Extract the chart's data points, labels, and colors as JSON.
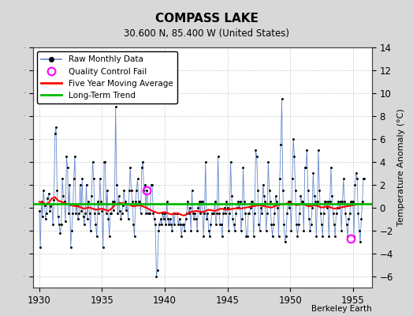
{
  "title": "COMPASS LAKE",
  "subtitle": "30.600 N, 85.400 W (United States)",
  "ylabel_right": "Temperature Anomaly (°C)",
  "credit": "Berkeley Earth",
  "ylim": [
    -7,
    14
  ],
  "xlim": [
    1929.5,
    1956.5
  ],
  "yticks": [
    -6,
    -4,
    -2,
    0,
    2,
    4,
    6,
    8,
    10,
    12,
    14
  ],
  "xticks": [
    1930,
    1935,
    1940,
    1945,
    1950,
    1955
  ],
  "bg_color": "#d8d8d8",
  "plot_bg_color": "#ffffff",
  "line_color": "#6688cc",
  "ma_color": "#ff0000",
  "trend_color": "#00bb00",
  "qc_color": "#ff00ff",
  "raw_data": [
    [
      1930.0,
      -0.3
    ],
    [
      1930.083,
      -3.5
    ],
    [
      1930.167,
      0.5
    ],
    [
      1930.25,
      -0.8
    ],
    [
      1930.333,
      1.5
    ],
    [
      1930.417,
      0.2
    ],
    [
      1930.5,
      -1.0
    ],
    [
      1930.583,
      -0.5
    ],
    [
      1930.667,
      0.8
    ],
    [
      1930.75,
      1.2
    ],
    [
      1930.833,
      -0.3
    ],
    [
      1930.917,
      0.1
    ],
    [
      1931.0,
      0.3
    ],
    [
      1931.083,
      -1.5
    ],
    [
      1931.167,
      0.7
    ],
    [
      1931.25,
      6.5
    ],
    [
      1931.333,
      7.0
    ],
    [
      1931.417,
      1.5
    ],
    [
      1931.5,
      -0.8
    ],
    [
      1931.583,
      -1.5
    ],
    [
      1931.667,
      -2.2
    ],
    [
      1931.75,
      -1.5
    ],
    [
      1931.833,
      2.5
    ],
    [
      1931.917,
      1.0
    ],
    [
      1932.0,
      0.5
    ],
    [
      1932.083,
      -1.2
    ],
    [
      1932.167,
      4.5
    ],
    [
      1932.25,
      3.5
    ],
    [
      1932.333,
      -0.5
    ],
    [
      1932.417,
      2.0
    ],
    [
      1932.5,
      -3.5
    ],
    [
      1932.583,
      -2.0
    ],
    [
      1932.667,
      -0.5
    ],
    [
      1932.75,
      2.5
    ],
    [
      1932.833,
      4.5
    ],
    [
      1932.917,
      -0.5
    ],
    [
      1933.0,
      0.2
    ],
    [
      1933.083,
      -1.0
    ],
    [
      1933.167,
      -0.5
    ],
    [
      1933.25,
      2.0
    ],
    [
      1933.333,
      -0.3
    ],
    [
      1933.417,
      2.5
    ],
    [
      1933.5,
      -0.8
    ],
    [
      1933.583,
      -1.5
    ],
    [
      1933.667,
      -0.5
    ],
    [
      1933.75,
      2.0
    ],
    [
      1933.833,
      -1.0
    ],
    [
      1933.917,
      0.5
    ],
    [
      1934.0,
      -0.5
    ],
    [
      1934.083,
      -2.0
    ],
    [
      1934.167,
      1.0
    ],
    [
      1934.25,
      4.0
    ],
    [
      1934.333,
      2.5
    ],
    [
      1934.417,
      -0.5
    ],
    [
      1934.5,
      -1.5
    ],
    [
      1934.583,
      -2.5
    ],
    [
      1934.667,
      0.5
    ],
    [
      1934.75,
      -0.5
    ],
    [
      1934.833,
      2.5
    ],
    [
      1934.917,
      0.5
    ],
    [
      1935.0,
      -0.3
    ],
    [
      1935.083,
      -3.5
    ],
    [
      1935.167,
      4.0
    ],
    [
      1935.25,
      4.0
    ],
    [
      1935.333,
      -0.5
    ],
    [
      1935.417,
      1.5
    ],
    [
      1935.5,
      -1.0
    ],
    [
      1935.583,
      -2.5
    ],
    [
      1935.667,
      -0.5
    ],
    [
      1935.75,
      -0.5
    ],
    [
      1935.833,
      0.5
    ],
    [
      1935.917,
      -0.2
    ],
    [
      1936.0,
      0.5
    ],
    [
      1936.083,
      8.8
    ],
    [
      1936.167,
      2.0
    ],
    [
      1936.25,
      -0.5
    ],
    [
      1936.333,
      1.0
    ],
    [
      1936.417,
      -0.3
    ],
    [
      1936.5,
      -1.0
    ],
    [
      1936.583,
      -0.5
    ],
    [
      1936.667,
      0.2
    ],
    [
      1936.75,
      1.5
    ],
    [
      1936.833,
      0.5
    ],
    [
      1936.917,
      -0.2
    ],
    [
      1937.0,
      0.3
    ],
    [
      1937.083,
      -1.0
    ],
    [
      1937.167,
      1.5
    ],
    [
      1937.25,
      3.5
    ],
    [
      1937.333,
      1.5
    ],
    [
      1937.417,
      0.5
    ],
    [
      1937.5,
      -1.5
    ],
    [
      1937.583,
      -2.5
    ],
    [
      1937.667,
      0.5
    ],
    [
      1937.75,
      1.5
    ],
    [
      1937.833,
      2.5
    ],
    [
      1937.917,
      0.5
    ],
    [
      1938.0,
      0.5
    ],
    [
      1938.083,
      -0.5
    ],
    [
      1938.167,
      3.5
    ],
    [
      1938.25,
      4.0
    ],
    [
      1938.333,
      1.5
    ],
    [
      1938.417,
      2.0
    ],
    [
      1938.5,
      -0.5
    ],
    [
      1938.583,
      1.5
    ],
    [
      1938.667,
      -0.5
    ],
    [
      1938.75,
      -0.5
    ],
    [
      1938.833,
      -0.5
    ],
    [
      1938.917,
      2.0
    ],
    [
      1939.0,
      2.0
    ],
    [
      1939.083,
      -0.5
    ],
    [
      1939.167,
      -1.0
    ],
    [
      1939.25,
      -1.5
    ],
    [
      1939.333,
      -6.0
    ],
    [
      1939.417,
      -5.5
    ],
    [
      1939.5,
      -2.0
    ],
    [
      1939.583,
      -1.5
    ],
    [
      1939.667,
      -1.0
    ],
    [
      1939.75,
      -1.5
    ],
    [
      1939.833,
      -0.5
    ],
    [
      1939.917,
      -1.0
    ],
    [
      1940.0,
      -0.5
    ],
    [
      1940.083,
      -1.5
    ],
    [
      1940.167,
      0.5
    ],
    [
      1940.25,
      -1.0
    ],
    [
      1940.333,
      -1.5
    ],
    [
      1940.417,
      -1.0
    ],
    [
      1940.5,
      -1.5
    ],
    [
      1940.583,
      -2.0
    ],
    [
      1940.667,
      -0.5
    ],
    [
      1940.75,
      -1.5
    ],
    [
      1940.833,
      -0.5
    ],
    [
      1940.917,
      -0.5
    ],
    [
      1941.0,
      -0.5
    ],
    [
      1941.083,
      -1.5
    ],
    [
      1941.167,
      -1.0
    ],
    [
      1941.25,
      -1.5
    ],
    [
      1941.333,
      -2.5
    ],
    [
      1941.417,
      -1.5
    ],
    [
      1941.5,
      -1.5
    ],
    [
      1941.583,
      -2.0
    ],
    [
      1941.667,
      -1.0
    ],
    [
      1941.75,
      -0.5
    ],
    [
      1941.833,
      0.5
    ],
    [
      1941.917,
      -0.5
    ],
    [
      1942.0,
      0.0
    ],
    [
      1942.083,
      -2.0
    ],
    [
      1942.167,
      1.5
    ],
    [
      1942.25,
      -0.5
    ],
    [
      1942.333,
      -1.0
    ],
    [
      1942.417,
      -0.5
    ],
    [
      1942.5,
      -1.0
    ],
    [
      1942.583,
      -2.0
    ],
    [
      1942.667,
      0.0
    ],
    [
      1942.75,
      0.5
    ],
    [
      1942.833,
      -0.5
    ],
    [
      1942.917,
      0.5
    ],
    [
      1943.0,
      0.5
    ],
    [
      1943.083,
      -2.5
    ],
    [
      1943.167,
      -0.5
    ],
    [
      1943.25,
      4.0
    ],
    [
      1943.333,
      -1.0
    ],
    [
      1943.417,
      -0.5
    ],
    [
      1943.5,
      -2.0
    ],
    [
      1943.583,
      -2.5
    ],
    [
      1943.667,
      -1.5
    ],
    [
      1943.75,
      -0.5
    ],
    [
      1943.833,
      -0.5
    ],
    [
      1943.917,
      -0.5
    ],
    [
      1944.0,
      0.5
    ],
    [
      1944.083,
      -1.5
    ],
    [
      1944.167,
      -0.5
    ],
    [
      1944.25,
      4.5
    ],
    [
      1944.333,
      -0.5
    ],
    [
      1944.417,
      -1.5
    ],
    [
      1944.5,
      -1.5
    ],
    [
      1944.583,
      -2.5
    ],
    [
      1944.667,
      -0.5
    ],
    [
      1944.75,
      0.0
    ],
    [
      1944.833,
      -0.5
    ],
    [
      1944.917,
      0.5
    ],
    [
      1945.0,
      0.0
    ],
    [
      1945.083,
      -2.0
    ],
    [
      1945.167,
      -0.5
    ],
    [
      1945.25,
      4.0
    ],
    [
      1945.333,
      1.0
    ],
    [
      1945.417,
      -1.0
    ],
    [
      1945.5,
      -1.5
    ],
    [
      1945.583,
      -2.0
    ],
    [
      1945.667,
      -0.5
    ],
    [
      1945.75,
      0.0
    ],
    [
      1945.833,
      0.5
    ],
    [
      1945.917,
      0.0
    ],
    [
      1946.0,
      0.5
    ],
    [
      1946.083,
      -2.0
    ],
    [
      1946.167,
      -1.0
    ],
    [
      1946.25,
      3.5
    ],
    [
      1946.333,
      0.5
    ],
    [
      1946.417,
      -0.5
    ],
    [
      1946.5,
      -2.5
    ],
    [
      1946.583,
      -2.5
    ],
    [
      1946.667,
      -0.5
    ],
    [
      1946.75,
      -0.5
    ],
    [
      1946.833,
      0.0
    ],
    [
      1946.917,
      0.5
    ],
    [
      1947.0,
      0.5
    ],
    [
      1947.083,
      -2.5
    ],
    [
      1947.167,
      -0.5
    ],
    [
      1947.25,
      5.0
    ],
    [
      1947.333,
      4.5
    ],
    [
      1947.417,
      1.5
    ],
    [
      1947.5,
      -1.5
    ],
    [
      1947.583,
      -2.0
    ],
    [
      1947.667,
      0.0
    ],
    [
      1947.75,
      -0.5
    ],
    [
      1947.833,
      2.0
    ],
    [
      1947.917,
      1.0
    ],
    [
      1948.0,
      0.5
    ],
    [
      1948.083,
      -2.0
    ],
    [
      1948.167,
      -0.5
    ],
    [
      1948.25,
      4.0
    ],
    [
      1948.333,
      1.5
    ],
    [
      1948.417,
      0.5
    ],
    [
      1948.5,
      -1.5
    ],
    [
      1948.583,
      -2.5
    ],
    [
      1948.667,
      -1.5
    ],
    [
      1948.75,
      -0.5
    ],
    [
      1948.833,
      1.0
    ],
    [
      1948.917,
      0.5
    ],
    [
      1949.0,
      0.0
    ],
    [
      1949.083,
      -2.5
    ],
    [
      1949.167,
      2.5
    ],
    [
      1949.25,
      5.5
    ],
    [
      1949.333,
      9.5
    ],
    [
      1949.417,
      1.5
    ],
    [
      1949.5,
      -1.5
    ],
    [
      1949.583,
      -3.0
    ],
    [
      1949.667,
      -2.5
    ],
    [
      1949.75,
      -0.5
    ],
    [
      1949.833,
      0.5
    ],
    [
      1949.917,
      0.0
    ],
    [
      1950.0,
      0.5
    ],
    [
      1950.083,
      -2.0
    ],
    [
      1950.167,
      2.5
    ],
    [
      1950.25,
      6.0
    ],
    [
      1950.333,
      4.5
    ],
    [
      1950.417,
      1.5
    ],
    [
      1950.5,
      -1.5
    ],
    [
      1950.583,
      -2.5
    ],
    [
      1950.667,
      -1.5
    ],
    [
      1950.75,
      -0.5
    ],
    [
      1950.833,
      1.0
    ],
    [
      1950.917,
      0.5
    ],
    [
      1951.0,
      0.5
    ],
    [
      1951.083,
      -2.0
    ],
    [
      1951.167,
      3.5
    ],
    [
      1951.25,
      3.5
    ],
    [
      1951.333,
      5.0
    ],
    [
      1951.417,
      1.5
    ],
    [
      1951.5,
      -1.0
    ],
    [
      1951.583,
      -2.0
    ],
    [
      1951.667,
      -1.5
    ],
    [
      1951.75,
      0.0
    ],
    [
      1951.833,
      3.0
    ],
    [
      1951.917,
      1.0
    ],
    [
      1952.0,
      0.5
    ],
    [
      1952.083,
      -2.5
    ],
    [
      1952.167,
      0.5
    ],
    [
      1952.25,
      5.0
    ],
    [
      1952.333,
      1.5
    ],
    [
      1952.417,
      -0.5
    ],
    [
      1952.5,
      -1.5
    ],
    [
      1952.583,
      -2.5
    ],
    [
      1952.667,
      -0.5
    ],
    [
      1952.75,
      0.5
    ],
    [
      1952.833,
      0.5
    ],
    [
      1952.917,
      0.0
    ],
    [
      1953.0,
      0.5
    ],
    [
      1953.083,
      -2.5
    ],
    [
      1953.167,
      0.5
    ],
    [
      1953.25,
      3.5
    ],
    [
      1953.333,
      1.0
    ],
    [
      1953.417,
      -0.5
    ],
    [
      1953.5,
      -1.5
    ],
    [
      1953.583,
      -2.5
    ],
    [
      1953.667,
      -0.5
    ],
    [
      1953.75,
      0.0
    ],
    [
      1953.833,
      0.5
    ],
    [
      1953.917,
      0.0
    ],
    [
      1954.0,
      0.5
    ],
    [
      1954.083,
      -2.0
    ],
    [
      1954.167,
      0.5
    ],
    [
      1954.25,
      2.5
    ],
    [
      1954.333,
      0.5
    ],
    [
      1954.417,
      -0.5
    ],
    [
      1954.5,
      -1.5
    ],
    [
      1954.583,
      -2.5
    ],
    [
      1954.667,
      -1.0
    ],
    [
      1954.75,
      -0.5
    ],
    [
      1954.833,
      0.5
    ],
    [
      1954.917,
      0.5
    ],
    [
      1955.0,
      0.5
    ],
    [
      1955.083,
      -2.5
    ],
    [
      1955.167,
      2.0
    ],
    [
      1955.25,
      3.0
    ],
    [
      1955.333,
      2.5
    ],
    [
      1955.417,
      -0.5
    ],
    [
      1955.5,
      -2.0
    ],
    [
      1955.583,
      -3.0
    ],
    [
      1955.667,
      -1.0
    ],
    [
      1955.75,
      0.5
    ],
    [
      1955.833,
      2.5
    ],
    [
      1955.917,
      2.5
    ]
  ],
  "qc_fail_points": [
    [
      1938.583,
      1.5
    ],
    [
      1954.833,
      -2.7
    ]
  ],
  "moving_avg_data": [
    [
      1930.0,
      0.5
    ],
    [
      1930.25,
      0.45
    ],
    [
      1930.5,
      0.3
    ],
    [
      1930.75,
      0.4
    ],
    [
      1931.0,
      0.8
    ],
    [
      1931.25,
      0.9
    ],
    [
      1931.5,
      0.6
    ],
    [
      1931.75,
      0.5
    ],
    [
      1932.0,
      0.4
    ],
    [
      1932.25,
      0.3
    ],
    [
      1932.5,
      0.2
    ],
    [
      1932.75,
      0.15
    ],
    [
      1933.0,
      0.1
    ],
    [
      1933.25,
      0.05
    ],
    [
      1933.5,
      -0.1
    ],
    [
      1933.75,
      -0.05
    ],
    [
      1934.0,
      0.0
    ],
    [
      1934.25,
      -0.1
    ],
    [
      1934.5,
      -0.2
    ],
    [
      1934.75,
      -0.15
    ],
    [
      1935.0,
      -0.1
    ],
    [
      1935.25,
      -0.2
    ],
    [
      1935.5,
      -0.3
    ],
    [
      1935.75,
      -0.1
    ],
    [
      1936.0,
      0.2
    ],
    [
      1936.25,
      0.35
    ],
    [
      1936.5,
      0.4
    ],
    [
      1936.75,
      0.35
    ],
    [
      1937.0,
      0.3
    ],
    [
      1937.25,
      0.2
    ],
    [
      1937.5,
      0.1
    ],
    [
      1937.75,
      0.15
    ],
    [
      1938.0,
      0.2
    ],
    [
      1938.25,
      0.1
    ],
    [
      1938.5,
      0.0
    ],
    [
      1938.75,
      -0.15
    ],
    [
      1939.0,
      -0.3
    ],
    [
      1939.25,
      -0.4
    ],
    [
      1939.5,
      -0.5
    ],
    [
      1939.75,
      -0.45
    ],
    [
      1940.0,
      -0.4
    ],
    [
      1940.25,
      -0.5
    ],
    [
      1940.5,
      -0.6
    ],
    [
      1940.75,
      -0.55
    ],
    [
      1941.0,
      -0.5
    ],
    [
      1941.25,
      -0.6
    ],
    [
      1941.5,
      -0.7
    ],
    [
      1941.75,
      -0.6
    ],
    [
      1942.0,
      -0.4
    ],
    [
      1942.25,
      -0.35
    ],
    [
      1942.5,
      -0.3
    ],
    [
      1942.75,
      -0.35
    ],
    [
      1943.0,
      -0.4
    ],
    [
      1943.25,
      -0.3
    ],
    [
      1943.5,
      -0.2
    ],
    [
      1943.75,
      -0.25
    ],
    [
      1944.0,
      -0.3
    ],
    [
      1944.25,
      -0.2
    ],
    [
      1944.5,
      -0.1
    ],
    [
      1944.75,
      -0.15
    ],
    [
      1945.0,
      -0.2
    ],
    [
      1945.25,
      -0.15
    ],
    [
      1945.5,
      -0.1
    ],
    [
      1945.75,
      -0.05
    ],
    [
      1946.0,
      -0.1
    ],
    [
      1946.25,
      -0.05
    ],
    [
      1946.5,
      0.0
    ],
    [
      1946.75,
      0.05
    ],
    [
      1947.0,
      0.1
    ],
    [
      1947.25,
      0.15
    ],
    [
      1947.5,
      0.2
    ],
    [
      1947.75,
      0.15
    ],
    [
      1948.0,
      0.1
    ],
    [
      1948.25,
      0.05
    ],
    [
      1948.5,
      0.0
    ],
    [
      1948.75,
      0.1
    ],
    [
      1949.0,
      0.2
    ],
    [
      1949.25,
      0.25
    ],
    [
      1949.5,
      0.3
    ],
    [
      1949.75,
      0.35
    ],
    [
      1950.0,
      0.4
    ],
    [
      1950.25,
      0.3
    ],
    [
      1950.5,
      0.2
    ],
    [
      1950.75,
      0.25
    ],
    [
      1951.0,
      0.3
    ],
    [
      1951.25,
      0.2
    ],
    [
      1951.5,
      0.1
    ],
    [
      1951.75,
      0.15
    ],
    [
      1952.0,
      0.2
    ],
    [
      1952.25,
      0.1
    ],
    [
      1952.5,
      0.0
    ],
    [
      1952.75,
      0.05
    ],
    [
      1953.0,
      0.1
    ],
    [
      1953.25,
      0.0
    ],
    [
      1953.5,
      -0.1
    ],
    [
      1953.75,
      -0.05
    ],
    [
      1954.0,
      0.0
    ],
    [
      1954.25,
      0.05
    ],
    [
      1954.5,
      0.1
    ],
    [
      1954.75,
      0.15
    ],
    [
      1955.0,
      0.2
    ],
    [
      1955.25,
      0.25
    ],
    [
      1955.5,
      0.3
    ],
    [
      1955.75,
      0.35
    ]
  ],
  "trend_y": 0.3,
  "figsize": [
    5.24,
    4.0
  ],
  "dpi": 100
}
